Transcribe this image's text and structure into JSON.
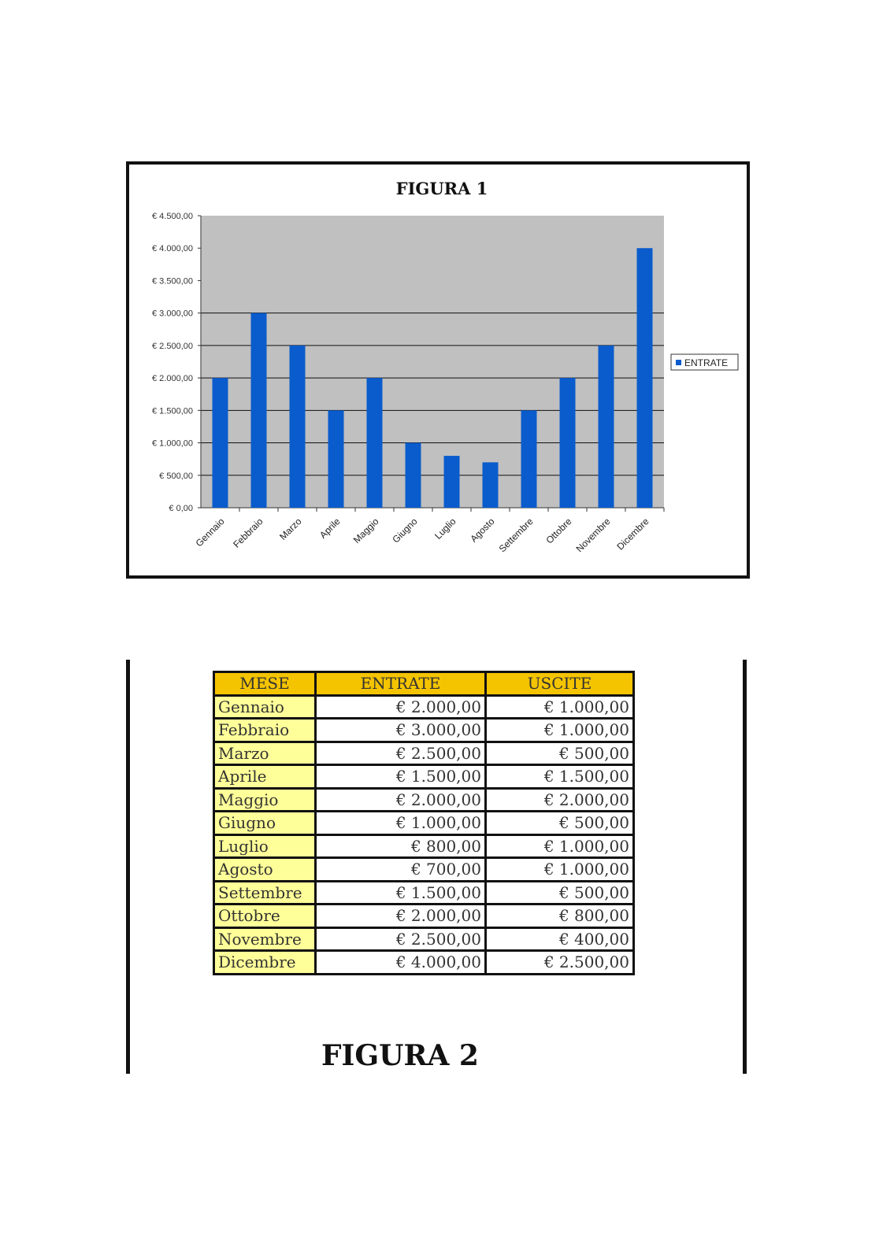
{
  "chart_data": {
    "type": "bar",
    "title": "FIGURA 1",
    "categories": [
      "Gennaio",
      "Febbraio",
      "Marzo",
      "Aprile",
      "Maggio",
      "Giugno",
      "Luglio",
      "Agosto",
      "Settembre",
      "Ottobre",
      "Novembre",
      "Dicembre"
    ],
    "series": [
      {
        "name": "ENTRATE",
        "values": [
          2000,
          3000,
          2500,
          1500,
          2000,
          1000,
          800,
          700,
          1500,
          2000,
          2500,
          4000
        ],
        "color": "#0a5ccc"
      }
    ],
    "ylim": [
      0,
      4500
    ],
    "yticks": [
      "€ 0,00",
      "€ 500,00",
      "€ 1.000,00",
      "€ 1.500,00",
      "€ 2.000,00",
      "€ 2.500,00",
      "€ 3.000,00",
      "€ 3.500,00",
      "€ 4.000,00",
      "€ 4.500,00"
    ],
    "plot_background": "#c0c0c0",
    "grid": true,
    "legend": "right"
  },
  "table": {
    "headers": [
      "MESE",
      "ENTRATE",
      "USCITE"
    ],
    "rows": [
      [
        "Gennaio",
        "€ 2.000,00",
        "€ 1.000,00"
      ],
      [
        "Febbraio",
        "€ 3.000,00",
        "€ 1.000,00"
      ],
      [
        "Marzo",
        "€ 2.500,00",
        "€ 500,00"
      ],
      [
        "Aprile",
        "€ 1.500,00",
        "€ 1.500,00"
      ],
      [
        "Maggio",
        "€ 2.000,00",
        "€ 2.000,00"
      ],
      [
        "Giugno",
        "€ 1.000,00",
        "€ 500,00"
      ],
      [
        "Luglio",
        "€ 800,00",
        "€ 1.000,00"
      ],
      [
        "Agosto",
        "€ 700,00",
        "€ 1.000,00"
      ],
      [
        "Settembre",
        "€ 1.500,00",
        "€ 500,00"
      ],
      [
        "Ottobre",
        "€ 2.000,00",
        "€ 800,00"
      ],
      [
        "Novembre",
        "€ 2.500,00",
        "€ 400,00"
      ],
      [
        "Dicembre",
        "€ 4.000,00",
        "€ 2.500,00"
      ]
    ],
    "caption": "FIGURA 2"
  }
}
